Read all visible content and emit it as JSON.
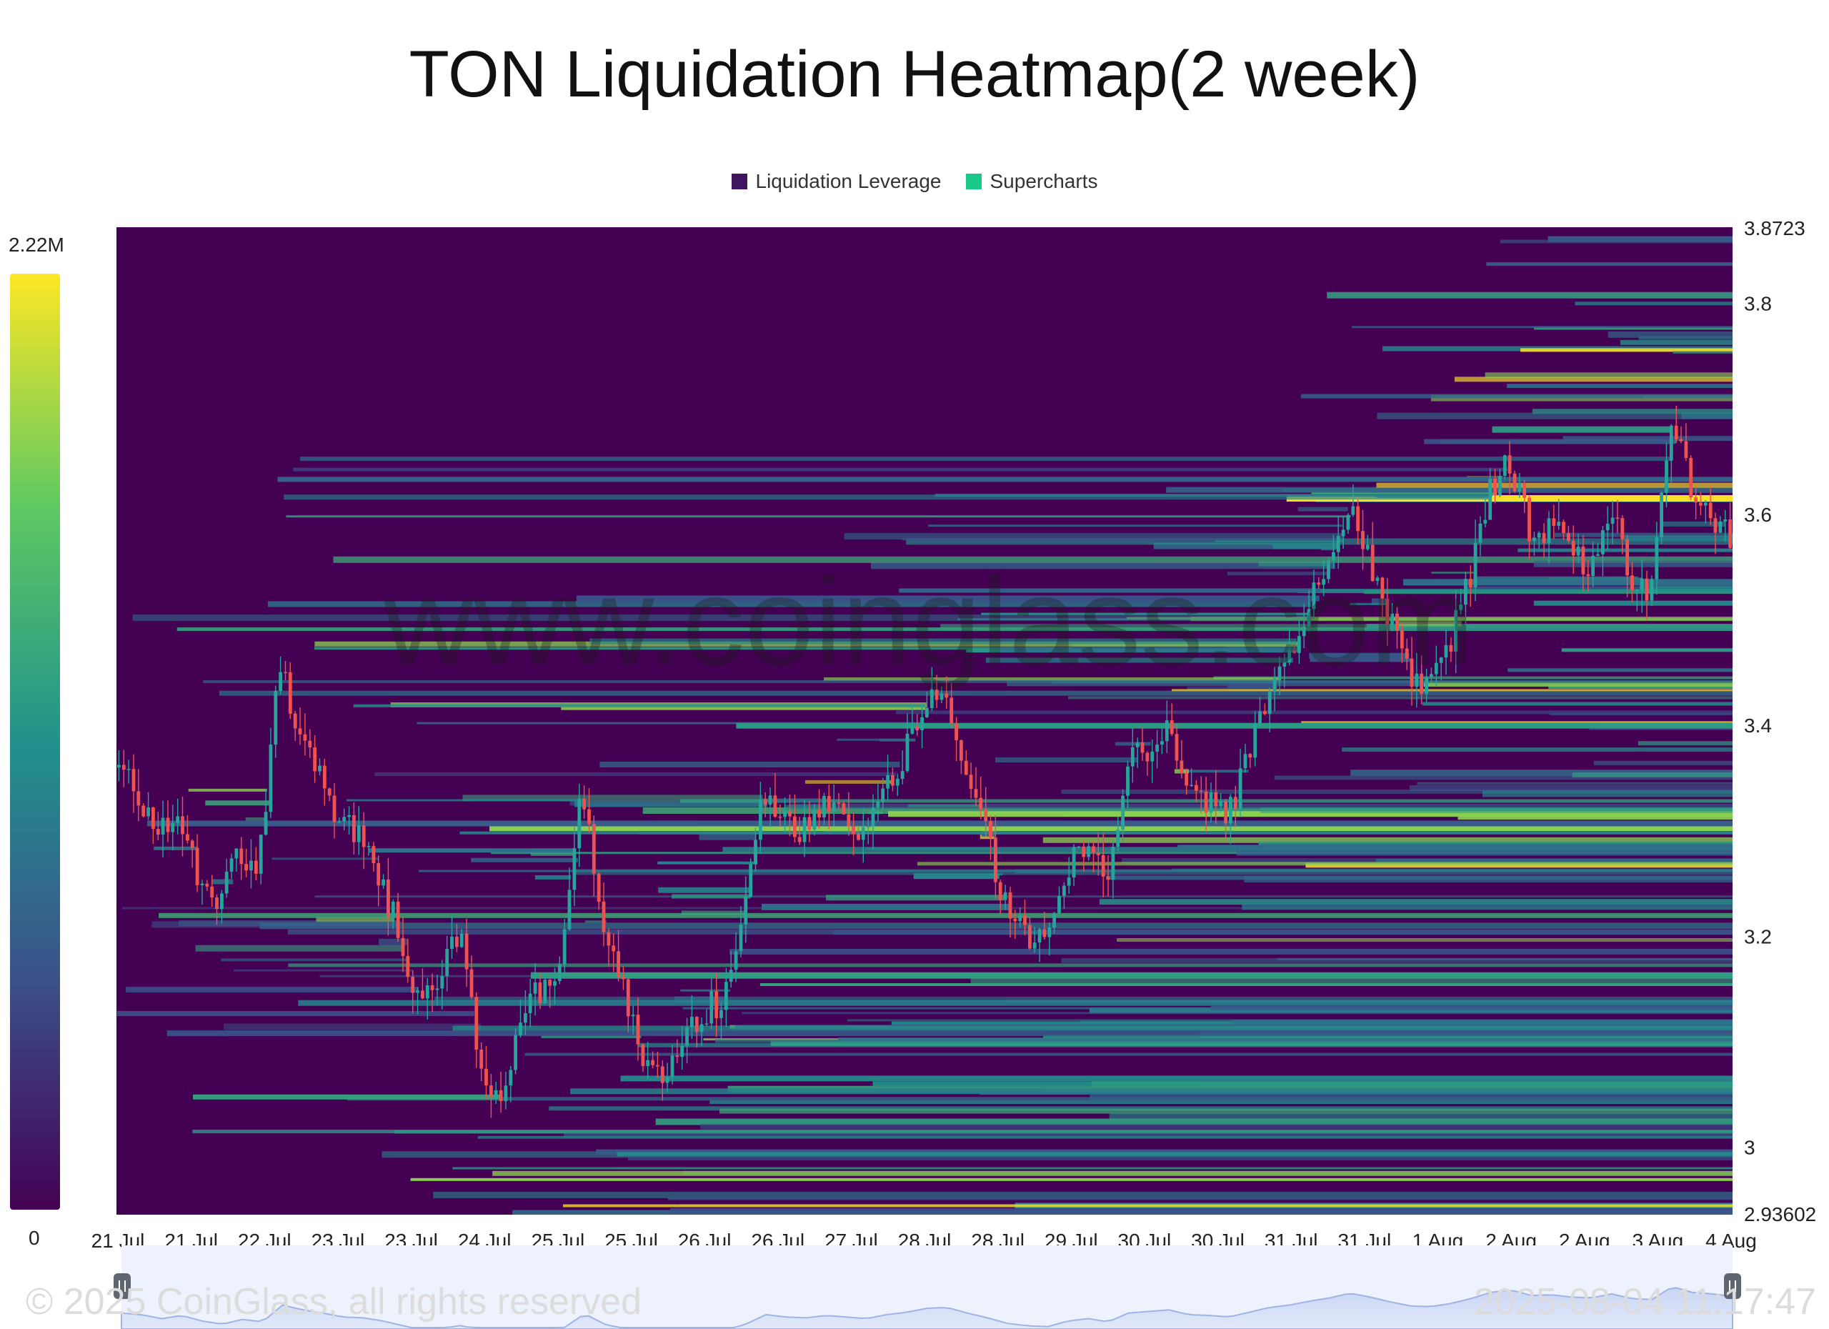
{
  "chart_data": {
    "type": "heatmap",
    "title": "TON Liquidation Heatmap(2 week)",
    "legend": [
      {
        "name": "Liquidation Leverage",
        "color": "#3e1560"
      },
      {
        "name": "Supercharts",
        "color": "#19c98a"
      }
    ],
    "legend_position": "top-center",
    "color_scale": {
      "min_label": "0",
      "max_label": "2.22M",
      "min": 0,
      "max": 2220000
    },
    "y_axis": {
      "min": 2.93602,
      "max": 3.8723,
      "min_label": "2.93602",
      "max_label": "3.8723",
      "ticks": [
        "3",
        "3.2",
        "3.4",
        "3.6",
        "3.8"
      ]
    },
    "x_axis": {
      "ticks": [
        "21 Jul",
        "21 Jul",
        "22 Jul",
        "23 Jul",
        "23 Jul",
        "24 Jul",
        "25 Jul",
        "25 Jul",
        "26 Jul",
        "26 Jul",
        "27 Jul",
        "28 Jul",
        "28 Jul",
        "29 Jul",
        "30 Jul",
        "30 Jul",
        "31 Jul",
        "31 Jul",
        "1 Aug",
        "2 Aug",
        "2 Aug",
        "3 Aug",
        "4 Aug"
      ]
    },
    "price_series": [
      3.36,
      3.34,
      3.29,
      3.33,
      3.26,
      3.22,
      3.28,
      3.25,
      3.46,
      3.4,
      3.36,
      3.31,
      3.3,
      3.26,
      3.2,
      3.13,
      3.17,
      3.21,
      3.08,
      3.03,
      3.13,
      3.15,
      3.18,
      3.35,
      3.22,
      3.16,
      3.08,
      3.06,
      3.09,
      3.13,
      3.14,
      3.22,
      3.34,
      3.31,
      3.3,
      3.33,
      3.31,
      3.29,
      3.34,
      3.37,
      3.42,
      3.43,
      3.36,
      3.3,
      3.23,
      3.2,
      3.19,
      3.26,
      3.29,
      3.25,
      3.36,
      3.38,
      3.4,
      3.34,
      3.33,
      3.31,
      3.37,
      3.43,
      3.46,
      3.51,
      3.55,
      3.61,
      3.56,
      3.5,
      3.45,
      3.44,
      3.48,
      3.54,
      3.62,
      3.65,
      3.58,
      3.59,
      3.56,
      3.55,
      3.6,
      3.54,
      3.53,
      3.69,
      3.62,
      3.6,
      3.57
    ]
  },
  "watermark": "www.coinglass.com",
  "footer": {
    "copyright": "© 2025 CoinGlass, all rights reserved",
    "timestamp": "2025-08-04 11:17:47"
  },
  "colors": {
    "background": "#440154",
    "candle_up": "#26a69a",
    "candle_down": "#ef5350",
    "peak": "#fde725"
  }
}
